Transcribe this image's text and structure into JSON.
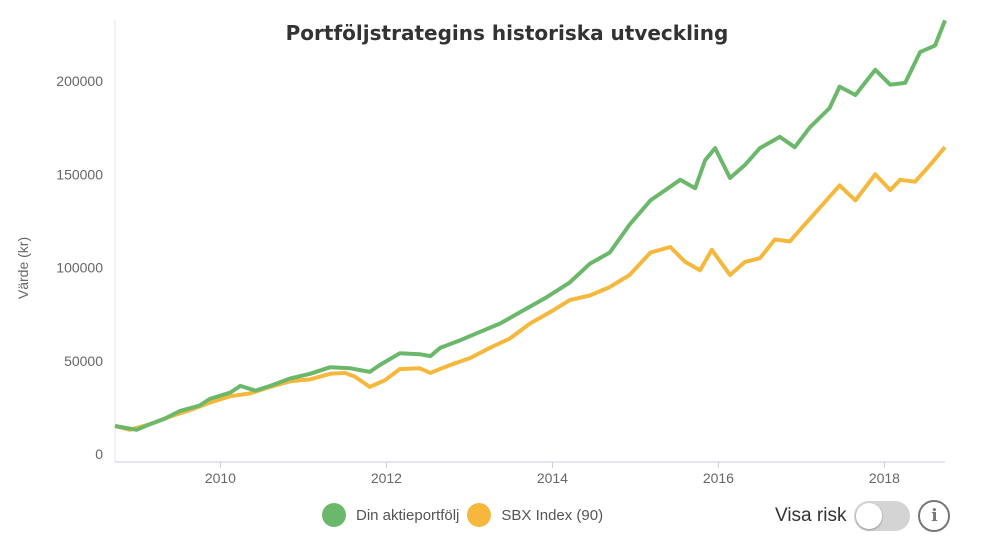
{
  "chart_data": {
    "type": "line",
    "title": "Portföljstrategins historiska utveckling",
    "xlabel": "",
    "ylabel": "Värde (kr)",
    "xlim": [
      2008.73,
      2018.73
    ],
    "ylim": [
      0,
      240000
    ],
    "x_ticks": [
      2010,
      2012,
      2014,
      2016,
      2018
    ],
    "x_tick_labels": [
      "2010",
      "2012",
      "2014",
      "2016",
      "2018"
    ],
    "y_ticks": [
      0,
      50000,
      100000,
      150000,
      200000
    ],
    "y_tick_labels": [
      "0",
      "50000",
      "100000",
      "150000",
      "200000"
    ],
    "grid": false,
    "legend": "bottom",
    "series": [
      {
        "name": "Din aktieportfölj",
        "color": "#6bb86b",
        "x": [
          2008.73,
          2008.99,
          2009.15,
          2009.33,
          2009.51,
          2009.75,
          2009.87,
          2010.12,
          2010.24,
          2010.42,
          2010.6,
          2010.84,
          2011.08,
          2011.32,
          2011.56,
          2011.8,
          2011.92,
          2012.16,
          2012.4,
          2012.53,
          2012.65,
          2012.89,
          2013.13,
          2013.37,
          2013.61,
          2013.91,
          2014.21,
          2014.45,
          2014.69,
          2014.93,
          2015.18,
          2015.36,
          2015.54,
          2015.72,
          2015.84,
          2015.96,
          2016.14,
          2016.32,
          2016.5,
          2016.74,
          2016.92,
          2017.1,
          2017.34,
          2017.46,
          2017.65,
          2017.89,
          2018.07,
          2018.25,
          2018.43,
          2018.61,
          2018.73
        ],
        "values": [
          15000,
          13000,
          16000,
          19000,
          23000,
          26000,
          29500,
          33000,
          36500,
          34000,
          36500,
          40500,
          43000,
          46500,
          46000,
          44000,
          47700,
          54000,
          53500,
          52500,
          57000,
          61000,
          65500,
          70000,
          76000,
          83500,
          92000,
          102000,
          108000,
          123000,
          136000,
          141500,
          147000,
          142500,
          157500,
          164000,
          148000,
          155000,
          164000,
          170000,
          164500,
          175000,
          185500,
          197000,
          192500,
          206000,
          198000,
          199000,
          215500,
          219000,
          232500
        ]
      },
      {
        "name": "SBX Index (90)",
        "color": "#f5b83d",
        "x": [
          2008.73,
          2008.91,
          2009.15,
          2009.39,
          2009.63,
          2009.87,
          2010.12,
          2010.36,
          2010.6,
          2010.84,
          2011.08,
          2011.32,
          2011.5,
          2011.62,
          2011.8,
          2011.98,
          2012.16,
          2012.4,
          2012.53,
          2012.77,
          2013.01,
          2013.25,
          2013.49,
          2013.73,
          2013.97,
          2014.21,
          2014.45,
          2014.69,
          2014.93,
          2015.18,
          2015.42,
          2015.6,
          2015.78,
          2015.92,
          2016.14,
          2016.32,
          2016.5,
          2016.68,
          2016.86,
          2017.04,
          2017.22,
          2017.46,
          2017.65,
          2017.89,
          2018.07,
          2018.19,
          2018.37,
          2018.55,
          2018.73
        ],
        "values": [
          15000,
          13000,
          16000,
          20000,
          23500,
          27500,
          31000,
          32500,
          36000,
          39000,
          40000,
          43000,
          43500,
          41500,
          36000,
          39500,
          45500,
          46000,
          43500,
          47700,
          51500,
          57000,
          62000,
          70000,
          76000,
          82500,
          85000,
          89500,
          96000,
          108000,
          111000,
          103000,
          98500,
          109500,
          96000,
          103000,
          105000,
          115000,
          114000,
          123000,
          132000,
          144000,
          136000,
          150000,
          141500,
          147000,
          146000,
          155000,
          164500
        ]
      }
    ]
  },
  "controls": {
    "risk_label": "Visa risk",
    "risk_enabled": false,
    "info_icon": "info-icon"
  }
}
